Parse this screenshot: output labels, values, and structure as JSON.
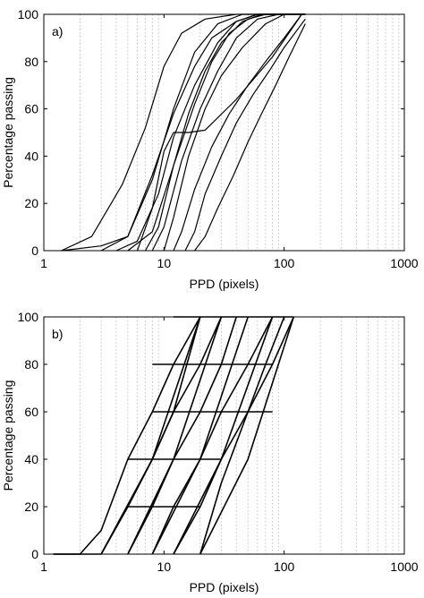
{
  "chart_data": [
    {
      "type": "line",
      "panel_label": "a)",
      "xlabel": "PPD (pixels)",
      "ylabel": "Percentage passing",
      "x_scale": "log",
      "xlim": [
        1,
        1000
      ],
      "ylim": [
        0,
        100
      ],
      "x_ticks": [
        1,
        10,
        100,
        1000
      ],
      "x_tick_labels": [
        "1",
        "10",
        "100",
        "1000"
      ],
      "y_ticks": [
        0,
        20,
        40,
        60,
        80,
        100
      ],
      "y_tick_labels": [
        "0",
        "20",
        "40",
        "60",
        "80",
        "100"
      ],
      "grid": "vertical dotted at minor log ticks",
      "series": [
        {
          "x": [
            1.4,
            2.5,
            4.5,
            7,
            10,
            14,
            22,
            40,
            70,
            150
          ],
          "y": [
            0,
            6,
            28,
            52,
            78,
            92,
            98,
            100,
            100,
            100
          ]
        },
        {
          "x": [
            1.4,
            3,
            5,
            8,
            12,
            18,
            28,
            45,
            80,
            150
          ],
          "y": [
            0,
            2,
            6,
            30,
            60,
            84,
            96,
            100,
            100,
            100
          ]
        },
        {
          "x": [
            3,
            5,
            8,
            12,
            18,
            25,
            40,
            60,
            100,
            150
          ],
          "y": [
            0,
            6,
            32,
            58,
            78,
            90,
            97,
            100,
            100,
            100
          ]
        },
        {
          "x": [
            4,
            6,
            9,
            12,
            18,
            28,
            40,
            60,
            90,
            150
          ],
          "y": [
            0,
            4,
            24,
            48,
            70,
            88,
            97,
            100,
            100,
            100
          ]
        },
        {
          "x": [
            5,
            8,
            12,
            18,
            25,
            35,
            50,
            70,
            100,
            150
          ],
          "y": [
            0,
            8,
            36,
            62,
            80,
            92,
            98,
            100,
            100,
            100
          ]
        },
        {
          "x": [
            7,
            9,
            12,
            16,
            22,
            30,
            45,
            65,
            100,
            150
          ],
          "y": [
            0,
            10,
            36,
            58,
            76,
            88,
            97,
            100,
            100,
            100
          ]
        },
        {
          "x": [
            8,
            10,
            14,
            20,
            28,
            40,
            60,
            90,
            150
          ],
          "y": [
            0,
            10,
            38,
            60,
            76,
            90,
            98,
            100,
            100
          ]
        },
        {
          "x": [
            10,
            12,
            16,
            22,
            30,
            45,
            70,
            100,
            150
          ],
          "y": [
            0,
            14,
            40,
            60,
            74,
            86,
            96,
            100,
            100
          ]
        },
        {
          "x": [
            6,
            8,
            10,
            12,
            16,
            22,
            40,
            80,
            140
          ],
          "y": [
            0,
            18,
            42,
            50,
            50,
            51,
            64,
            82,
            100
          ]
        },
        {
          "x": [
            12,
            14,
            18,
            25,
            35,
            50,
            70,
            100,
            140
          ],
          "y": [
            0,
            8,
            26,
            44,
            58,
            70,
            80,
            90,
            100
          ]
        },
        {
          "x": [
            15,
            18,
            22,
            30,
            40,
            55,
            75,
            100,
            150
          ],
          "y": [
            0,
            8,
            24,
            40,
            54,
            66,
            76,
            86,
            98
          ]
        },
        {
          "x": [
            18,
            22,
            28,
            38,
            50,
            65,
            85,
            110,
            150
          ],
          "y": [
            0,
            6,
            18,
            32,
            46,
            58,
            70,
            82,
            96
          ]
        }
      ]
    },
    {
      "type": "line",
      "panel_label": "b)",
      "xlabel": "PPD (pixels)",
      "ylabel": "Percentage passing",
      "x_scale": "log",
      "xlim": [
        1,
        1000
      ],
      "ylim": [
        0,
        100
      ],
      "x_ticks": [
        1,
        10,
        100,
        1000
      ],
      "x_tick_labels": [
        "1",
        "10",
        "100",
        "1000"
      ],
      "y_ticks": [
        0,
        20,
        40,
        60,
        80,
        100
      ],
      "y_tick_labels": [
        "0",
        "20",
        "40",
        "60",
        "80",
        "100"
      ],
      "grid": "vertical dotted at minor log ticks",
      "series": [
        {
          "x": [
            1.2,
            2,
            3,
            5,
            8,
            12,
            20
          ],
          "y": [
            0,
            0,
            10,
            40,
            60,
            80,
            100
          ]
        },
        {
          "x": [
            1.2,
            3,
            5,
            8,
            12,
            20
          ],
          "y": [
            0,
            0,
            20,
            40,
            60,
            100
          ]
        },
        {
          "x": [
            3,
            5,
            8,
            12,
            20,
            30
          ],
          "y": [
            0,
            20,
            40,
            60,
            80,
            100
          ]
        },
        {
          "x": [
            5,
            8,
            12,
            20,
            30,
            40
          ],
          "y": [
            0,
            20,
            40,
            60,
            80,
            100
          ]
        },
        {
          "x": [
            8,
            12,
            20,
            30,
            50,
            80
          ],
          "y": [
            0,
            20,
            40,
            60,
            80,
            100
          ]
        },
        {
          "x": [
            12,
            20,
            30,
            50,
            70,
            100
          ],
          "y": [
            0,
            20,
            40,
            60,
            80,
            100
          ]
        },
        {
          "x": [
            20,
            30,
            50,
            80,
            120
          ],
          "y": [
            0,
            30,
            60,
            80,
            100
          ]
        },
        {
          "x": [
            3,
            8,
            20
          ],
          "y": [
            0,
            40,
            100
          ]
        },
        {
          "x": [
            5,
            12,
            30
          ],
          "y": [
            0,
            40,
            100
          ]
        },
        {
          "x": [
            8,
            20,
            50
          ],
          "y": [
            0,
            40,
            100
          ]
        },
        {
          "x": [
            12,
            30,
            80
          ],
          "y": [
            0,
            40,
            100
          ]
        },
        {
          "x": [
            20,
            50,
            120
          ],
          "y": [
            0,
            40,
            100
          ]
        },
        {
          "x": [
            5,
            8,
            12,
            20
          ],
          "y": [
            20,
            20,
            20,
            20
          ]
        },
        {
          "x": [
            5,
            10,
            20,
            30
          ],
          "y": [
            40,
            40,
            40,
            40
          ]
        },
        {
          "x": [
            8,
            15,
            30,
            50,
            80
          ],
          "y": [
            60,
            60,
            60,
            60,
            60
          ]
        },
        {
          "x": [
            8,
            15,
            30,
            50,
            80
          ],
          "y": [
            80,
            80,
            80,
            80,
            80
          ]
        },
        {
          "x": [
            12,
            20,
            30,
            50,
            80,
            120
          ],
          "y": [
            100,
            100,
            100,
            100,
            100,
            100
          ]
        }
      ]
    }
  ]
}
